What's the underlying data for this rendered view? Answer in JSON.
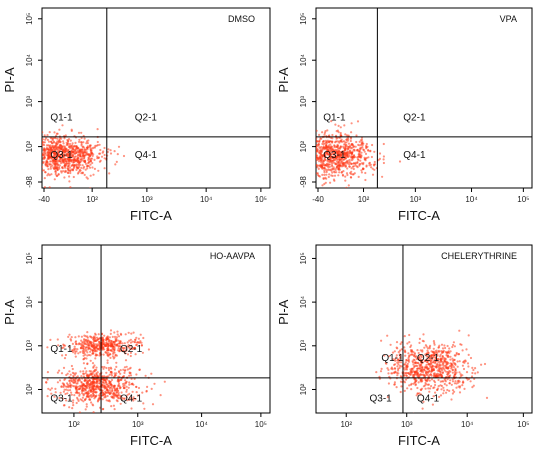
{
  "chart_data": [
    {
      "type": "scatter",
      "title": "DMSO",
      "xlabel": "FITC-A",
      "ylabel": "PI-A",
      "xscale": "log",
      "yscale": "log",
      "x_ticks": [
        "-40",
        "10²",
        "10³",
        "10⁴",
        "10⁵"
      ],
      "y_ticks": [
        "-98",
        "10²",
        "10³",
        "10⁴",
        "10⁵"
      ],
      "gate_lines": {
        "x": 350,
        "y": 350
      },
      "quadrants": [
        {
          "name": "Q1-1",
          "x": 60,
          "y": 900
        },
        {
          "name": "Q2-1",
          "x": 1600,
          "y": 900
        },
        {
          "name": "Q3-1",
          "x": 60,
          "y": 140
        },
        {
          "name": "Q4-1",
          "x": 1600,
          "y": 140
        }
      ],
      "clusters": [
        {
          "cx": 60,
          "cy": 140,
          "sx": 0.33,
          "sy": 0.22,
          "n": 900
        }
      ],
      "color": "#ff3b1a"
    },
    {
      "type": "scatter",
      "title": "VPA",
      "xlabel": "FITC-A",
      "ylabel": "PI-A",
      "xscale": "log",
      "yscale": "log",
      "x_ticks": [
        "-40",
        "10²",
        "10³",
        "10⁴",
        "10⁵"
      ],
      "y_ticks": [
        "-98",
        "10²",
        "10³",
        "10⁴",
        "10⁵"
      ],
      "gate_lines": {
        "x": 350,
        "y": 350
      },
      "quadrants": [
        {
          "name": "Q1-1",
          "x": 60,
          "y": 900
        },
        {
          "name": "Q2-1",
          "x": 1600,
          "y": 900
        },
        {
          "name": "Q3-1",
          "x": 60,
          "y": 140
        },
        {
          "name": "Q4-1",
          "x": 1600,
          "y": 140
        }
      ],
      "clusters": [
        {
          "cx": 60,
          "cy": 140,
          "sx": 0.33,
          "sy": 0.22,
          "n": 850
        }
      ],
      "color": "#ff3b1a"
    },
    {
      "type": "scatter",
      "title": "HO-AAVPA",
      "xlabel": "FITC-A",
      "ylabel": "PI-A",
      "xscale": "log",
      "yscale": "log",
      "x_ticks": [
        "10²",
        "10³",
        "10⁴",
        "10⁵"
      ],
      "y_ticks": [
        "10²",
        "10³",
        "10⁴",
        "10⁵"
      ],
      "gate_lines": {
        "x": 280,
        "y": 180
      },
      "quadrants": [
        {
          "name": "Q1-1",
          "x": 60,
          "y": 800
        },
        {
          "name": "Q2-1",
          "x": 900,
          "y": 800
        },
        {
          "name": "Q3-1",
          "x": 60,
          "y": 60
        },
        {
          "name": "Q4-1",
          "x": 900,
          "y": 60
        }
      ],
      "clusters": [
        {
          "cx": 300,
          "cy": 1000,
          "sx": 0.32,
          "sy": 0.12,
          "n": 450
        },
        {
          "cx": 250,
          "cy": 120,
          "sx": 0.35,
          "sy": 0.22,
          "n": 700
        }
      ],
      "color": "#ff3b1a"
    },
    {
      "type": "scatter",
      "title": "CHELERYTHRINE",
      "xlabel": "FITC-A",
      "ylabel": "PI-A",
      "xscale": "log",
      "yscale": "log",
      "x_ticks": [
        "10²",
        "10³",
        "10⁴",
        "10⁵"
      ],
      "y_ticks": [
        "10²",
        "10³",
        "10⁴",
        "10⁵"
      ],
      "gate_lines": {
        "x": 1000,
        "y": 180
      },
      "quadrants": [
        {
          "name": "Q1-1",
          "x": 650,
          "y": 500
        },
        {
          "name": "Q2-1",
          "x": 2800,
          "y": 500
        },
        {
          "name": "Q3-1",
          "x": 400,
          "y": 60
        },
        {
          "name": "Q4-1",
          "x": 2800,
          "y": 60
        }
      ],
      "clusters": [
        {
          "cx": 2800,
          "cy": 300,
          "sx": 0.35,
          "sy": 0.28,
          "n": 750
        }
      ],
      "color": "#ff3b1a"
    }
  ]
}
